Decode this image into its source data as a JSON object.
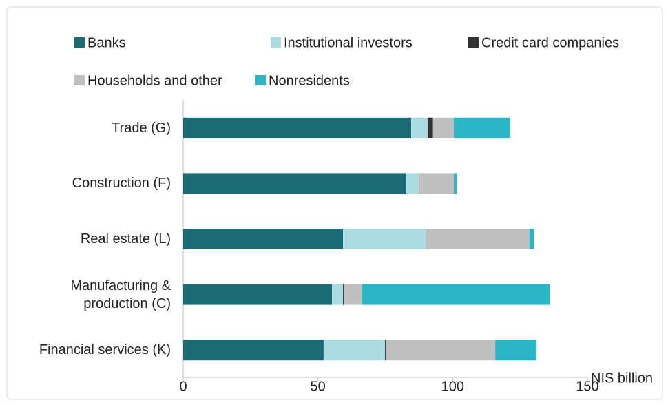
{
  "chart_data": {
    "type": "stacked_bar_horizontal",
    "categories": [
      "Trade (G)",
      "Construction (F)",
      "Real estate (L)",
      "Manufacturing & production (C)",
      "Financial services (K)"
    ],
    "series": [
      {
        "name": "Banks",
        "color": "#1b6b74",
        "values": [
          84.6,
          82.8,
          59.3,
          55.2,
          52.1
        ]
      },
      {
        "name": "Institutional investors",
        "color": "#aadce2",
        "values": [
          6.1,
          4.6,
          30.7,
          4.1,
          22.8
        ]
      },
      {
        "name": "Credit card companies",
        "color": "#333333",
        "values": [
          2.0,
          0.2,
          0.2,
          0.3,
          0.3
        ]
      },
      {
        "name": "Households and other",
        "color": "#bfbfbf",
        "values": [
          7.7,
          12.8,
          38.3,
          6.8,
          40.6
        ]
      },
      {
        "name": "Nonresidents",
        "color": "#29b6c7",
        "values": [
          20.9,
          1.3,
          1.8,
          69.6,
          15.3
        ]
      }
    ],
    "x_label": "NIS billion",
    "xlim": [
      0,
      150
    ],
    "xticks": [
      0,
      50,
      100,
      150
    ]
  }
}
